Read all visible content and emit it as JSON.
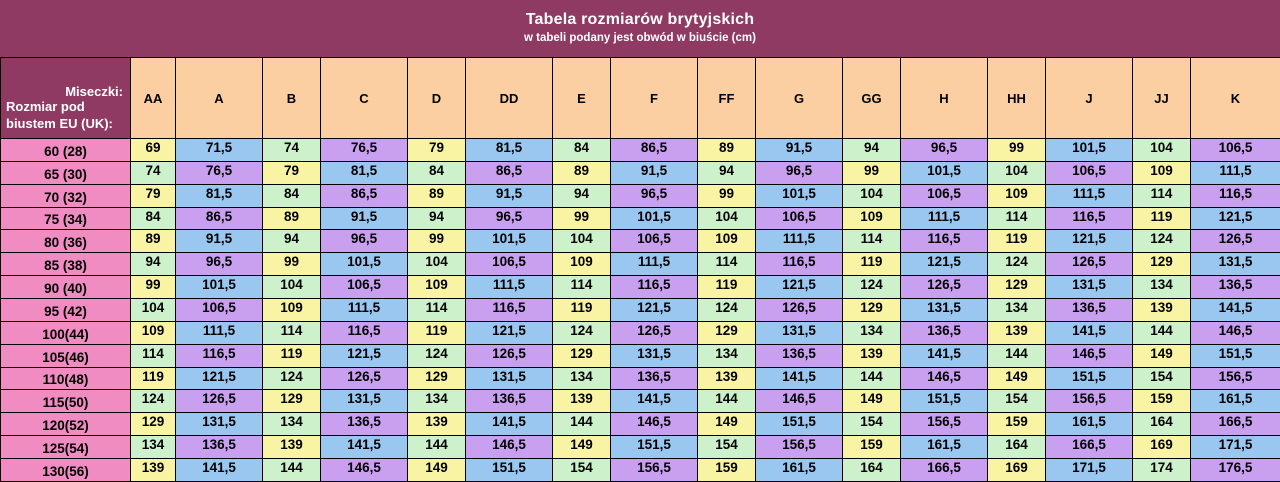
{
  "banner": {
    "title": "Tabela rozmiarów brytyjskich",
    "subtitle": "w tabeli podany jest obwód w biuście (cm)",
    "bg_color": "#8e3a62",
    "text_color": "#ffffff"
  },
  "table": {
    "corner": {
      "cups_label": "Miseczki:",
      "band_label": "Rozmiar pod biustem EU (UK):"
    },
    "columns": [
      "AA",
      "A",
      "B",
      "C",
      "D",
      "DD",
      "E",
      "F",
      "FF",
      "G",
      "GG",
      "H",
      "HH",
      "J",
      "JJ",
      "K"
    ],
    "rows": [
      {
        "label": "60 (28)",
        "values": [
          "69",
          "71,5",
          "74",
          "76,5",
          "79",
          "81,5",
          "84",
          "86,5",
          "89",
          "91,5",
          "94",
          "96,5",
          "99",
          "101,5",
          "104",
          "106,5"
        ]
      },
      {
        "label": "65 (30)",
        "values": [
          "74",
          "76,5",
          "79",
          "81,5",
          "84",
          "86,5",
          "89",
          "91,5",
          "94",
          "96,5",
          "99",
          "101,5",
          "104",
          "106,5",
          "109",
          "111,5"
        ]
      },
      {
        "label": "70 (32)",
        "values": [
          "79",
          "81,5",
          "84",
          "86,5",
          "89",
          "91,5",
          "94",
          "96,5",
          "99",
          "101,5",
          "104",
          "106,5",
          "109",
          "111,5",
          "114",
          "116,5"
        ]
      },
      {
        "label": "75 (34)",
        "values": [
          "84",
          "86,5",
          "89",
          "91,5",
          "94",
          "96,5",
          "99",
          "101,5",
          "104",
          "106,5",
          "109",
          "111,5",
          "114",
          "116,5",
          "119",
          "121,5"
        ]
      },
      {
        "label": "80 (36)",
        "values": [
          "89",
          "91,5",
          "94",
          "96,5",
          "99",
          "101,5",
          "104",
          "106,5",
          "109",
          "111,5",
          "114",
          "116,5",
          "119",
          "121,5",
          "124",
          "126,5"
        ]
      },
      {
        "label": "85 (38)",
        "values": [
          "94",
          "96,5",
          "99",
          "101,5",
          "104",
          "106,5",
          "109",
          "111,5",
          "114",
          "116,5",
          "119",
          "121,5",
          "124",
          "126,5",
          "129",
          "131,5"
        ]
      },
      {
        "label": "90 (40)",
        "values": [
          "99",
          "101,5",
          "104",
          "106,5",
          "109",
          "111,5",
          "114",
          "116,5",
          "119",
          "121,5",
          "124",
          "126,5",
          "129",
          "131,5",
          "134",
          "136,5"
        ]
      },
      {
        "label": "95 (42)",
        "values": [
          "104",
          "106,5",
          "109",
          "111,5",
          "114",
          "116,5",
          "119",
          "121,5",
          "124",
          "126,5",
          "129",
          "131,5",
          "134",
          "136,5",
          "139",
          "141,5"
        ]
      },
      {
        "label": "100(44)",
        "values": [
          "109",
          "111,5",
          "114",
          "116,5",
          "119",
          "121,5",
          "124",
          "126,5",
          "129",
          "131,5",
          "134",
          "136,5",
          "139",
          "141,5",
          "144",
          "146,5"
        ]
      },
      {
        "label": "105(46)",
        "values": [
          "114",
          "116,5",
          "119",
          "121,5",
          "124",
          "126,5",
          "129",
          "131,5",
          "134",
          "136,5",
          "139",
          "141,5",
          "144",
          "146,5",
          "149",
          "151,5"
        ]
      },
      {
        "label": "110(48)",
        "values": [
          "119",
          "121,5",
          "124",
          "126,5",
          "129",
          "131,5",
          "134",
          "136,5",
          "139",
          "141,5",
          "144",
          "146,5",
          "149",
          "151,5",
          "154",
          "156,5"
        ]
      },
      {
        "label": "115(50)",
        "values": [
          "124",
          "126,5",
          "129",
          "131,5",
          "134",
          "136,5",
          "139",
          "141,5",
          "144",
          "146,5",
          "149",
          "151,5",
          "154",
          "156,5",
          "159",
          "161,5"
        ]
      },
      {
        "label": "120(52)",
        "values": [
          "129",
          "131,5",
          "134",
          "136,5",
          "139",
          "141,5",
          "144",
          "146,5",
          "149",
          "151,5",
          "154",
          "156,5",
          "159",
          "161,5",
          "164",
          "166,5"
        ]
      },
      {
        "label": "125(54)",
        "values": [
          "134",
          "136,5",
          "139",
          "141,5",
          "144",
          "146,5",
          "149",
          "151,5",
          "154",
          "156,5",
          "159",
          "161,5",
          "164",
          "166,5",
          "169",
          "171,5"
        ]
      },
      {
        "label": "130(56)",
        "values": [
          "139",
          "141,5",
          "144",
          "146,5",
          "149",
          "151,5",
          "154",
          "156,5",
          "159",
          "161,5",
          "164",
          "166,5",
          "169",
          "171,5",
          "174",
          "176,5"
        ]
      }
    ],
    "colors": {
      "header_bg": "#fccfa2",
      "row_label_bg": "#f08cc1",
      "corner_bg": "#8e3a62",
      "cell_palette": [
        "#f8f4a3",
        "#9ac7f0",
        "#cdf2cb",
        "#c9a0f0"
      ],
      "border": "#000000",
      "cell_text": "#000000"
    }
  },
  "chart_data": {
    "type": "table",
    "title": "Tabela rozmiarów brytyjskich",
    "subtitle": "w tabeli podany jest obwód w biuście (cm)",
    "row_header_label_right": "Miseczki:",
    "row_header_label_left": "Rozmiar pod biustem EU (UK):",
    "columns": [
      "AA",
      "A",
      "B",
      "C",
      "D",
      "DD",
      "E",
      "F",
      "FF",
      "G",
      "GG",
      "H",
      "HH",
      "J",
      "JJ",
      "K"
    ],
    "row_labels": [
      "60 (28)",
      "65 (30)",
      "70 (32)",
      "75 (34)",
      "80 (36)",
      "85 (38)",
      "90 (40)",
      "95 (42)",
      "100(44)",
      "105(46)",
      "110(48)",
      "115(50)",
      "120(52)",
      "125(54)",
      "130(56)"
    ],
    "values": [
      [
        69,
        71.5,
        74,
        76.5,
        79,
        81.5,
        84,
        86.5,
        89,
        91.5,
        94,
        96.5,
        99,
        101.5,
        104,
        106.5
      ],
      [
        74,
        76.5,
        79,
        81.5,
        84,
        86.5,
        89,
        91.5,
        94,
        96.5,
        99,
        101.5,
        104,
        106.5,
        109,
        111.5
      ],
      [
        79,
        81.5,
        84,
        86.5,
        89,
        91.5,
        94,
        96.5,
        99,
        101.5,
        104,
        106.5,
        109,
        111.5,
        114,
        116.5
      ],
      [
        84,
        86.5,
        89,
        91.5,
        94,
        96.5,
        99,
        101.5,
        104,
        106.5,
        109,
        111.5,
        114,
        116.5,
        119,
        121.5
      ],
      [
        89,
        91.5,
        94,
        96.5,
        99,
        101.5,
        104,
        106.5,
        109,
        111.5,
        114,
        116.5,
        119,
        121.5,
        124,
        126.5
      ],
      [
        94,
        96.5,
        99,
        101.5,
        104,
        106.5,
        109,
        111.5,
        114,
        116.5,
        119,
        121.5,
        124,
        126.5,
        129,
        131.5
      ],
      [
        99,
        101.5,
        104,
        106.5,
        109,
        111.5,
        114,
        116.5,
        119,
        121.5,
        124,
        126.5,
        129,
        131.5,
        134,
        136.5
      ],
      [
        104,
        106.5,
        109,
        111.5,
        114,
        116.5,
        119,
        121.5,
        124,
        126.5,
        129,
        131.5,
        134,
        136.5,
        139,
        141.5
      ],
      [
        109,
        111.5,
        114,
        116.5,
        119,
        121.5,
        124,
        126.5,
        129,
        131.5,
        134,
        136.5,
        139,
        141.5,
        144,
        146.5
      ],
      [
        114,
        116.5,
        119,
        121.5,
        124,
        126.5,
        129,
        131.5,
        134,
        136.5,
        139,
        141.5,
        144,
        146.5,
        149,
        151.5
      ],
      [
        119,
        121.5,
        124,
        126.5,
        129,
        131.5,
        134,
        136.5,
        139,
        141.5,
        144,
        146.5,
        149,
        151.5,
        154,
        156.5
      ],
      [
        124,
        126.5,
        129,
        131.5,
        134,
        136.5,
        139,
        141.5,
        144,
        146.5,
        149,
        151.5,
        154,
        156.5,
        159,
        161.5
      ],
      [
        129,
        131.5,
        134,
        136.5,
        139,
        141.5,
        144,
        146.5,
        149,
        151.5,
        154,
        156.5,
        159,
        161.5,
        164,
        166.5
      ],
      [
        134,
        136.5,
        139,
        141.5,
        144,
        146.5,
        149,
        151.5,
        154,
        156.5,
        159,
        161.5,
        164,
        166.5,
        169,
        171.5
      ],
      [
        139,
        141.5,
        144,
        146.5,
        149,
        151.5,
        154,
        156.5,
        159,
        161.5,
        164,
        166.5,
        169,
        171.5,
        174,
        176.5
      ]
    ],
    "unit": "cm",
    "cell_color_rule": "palette[(col + 2*row) % 4]"
  }
}
